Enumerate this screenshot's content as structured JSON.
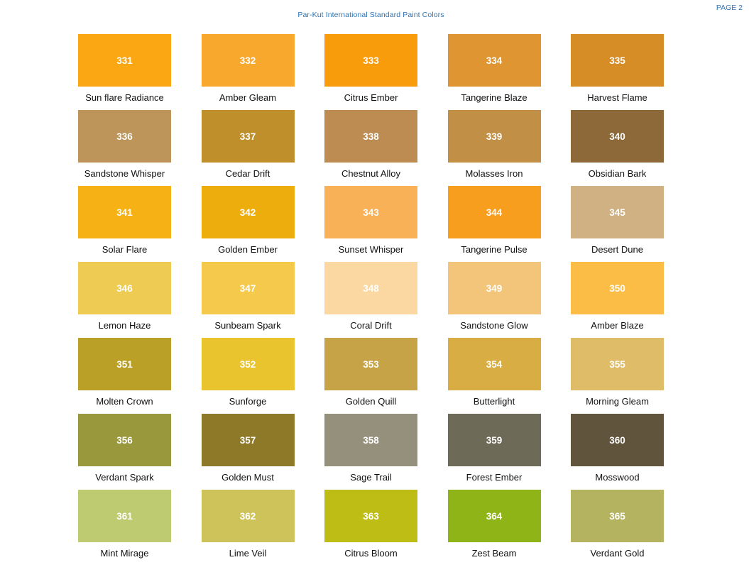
{
  "page": {
    "title": "Par-Kut International Standard Paint Colors",
    "page_label": "PAGE 2",
    "accent_color": "#2E74B5",
    "background_color": "#FFFFFF"
  },
  "grid": {
    "columns": 5,
    "rows": 7
  },
  "swatches": [
    {
      "code": "331",
      "name": "Sun flare Radiance",
      "color": "#FBA713"
    },
    {
      "code": "332",
      "name": "Amber Gleam",
      "color": "#F9A82E"
    },
    {
      "code": "333",
      "name": "Citrus Ember",
      "color": "#F89C0C"
    },
    {
      "code": "334",
      "name": "Tangerine Blaze",
      "color": "#DE9532"
    },
    {
      "code": "335",
      "name": "Harvest Flame",
      "color": "#D78D26"
    },
    {
      "code": "336",
      "name": "Sandstone Whisper",
      "color": "#BD9459"
    },
    {
      "code": "337",
      "name": "Cedar Drift",
      "color": "#BE8F2B"
    },
    {
      "code": "338",
      "name": "Chestnut Alloy",
      "color": "#BD8C52"
    },
    {
      "code": "339",
      "name": "Molasses Iron",
      "color": "#C28F47"
    },
    {
      "code": "340",
      "name": "Obsidian Bark",
      "color": "#8D693A"
    },
    {
      "code": "341",
      "name": "Solar Flare",
      "color": "#F6B115"
    },
    {
      "code": "342",
      "name": "Golden Ember",
      "color": "#EDAE0D"
    },
    {
      "code": "343",
      "name": "Sunset Whisper",
      "color": "#F8B156"
    },
    {
      "code": "344",
      "name": "Tangerine Pulse",
      "color": "#F89E1E"
    },
    {
      "code": "345",
      "name": "Desert Dune",
      "color": "#CFB184"
    },
    {
      "code": "346",
      "name": "Lemon Haze",
      "color": "#EECB52"
    },
    {
      "code": "347",
      "name": "Sunbeam Spark",
      "color": "#F5CA4C"
    },
    {
      "code": "348",
      "name": "Coral Drift",
      "color": "#FBD7A2"
    },
    {
      "code": "349",
      "name": "Sandstone Glow",
      "color": "#F2C57B"
    },
    {
      "code": "350",
      "name": "Amber Blaze",
      "color": "#FBBD45"
    },
    {
      "code": "351",
      "name": "Molten Crown",
      "color": "#BBA027"
    },
    {
      "code": "352",
      "name": "Sunforge",
      "color": "#EAC42E"
    },
    {
      "code": "353",
      "name": "Golden Quill",
      "color": "#C6A347"
    },
    {
      "code": "354",
      "name": "Butterlight",
      "color": "#D8AD43"
    },
    {
      "code": "355",
      "name": "Morning Gleam",
      "color": "#DFBC68"
    },
    {
      "code": "356",
      "name": "Verdant Spark",
      "color": "#99983D"
    },
    {
      "code": "357",
      "name": "Golden Must",
      "color": "#8E7929"
    },
    {
      "code": "358",
      "name": "Sage Trail",
      "color": "#95907B"
    },
    {
      "code": "359",
      "name": "Forest Ember",
      "color": "#6E6A58"
    },
    {
      "code": "360",
      "name": "Mosswood",
      "color": "#61543D"
    },
    {
      "code": "361",
      "name": "Mint Mirage",
      "color": "#BECB71"
    },
    {
      "code": "362",
      "name": "Lime Veil",
      "color": "#CEC35B"
    },
    {
      "code": "363",
      "name": "Citrus Bloom",
      "color": "#BDBD15"
    },
    {
      "code": "364",
      "name": "Zest Beam",
      "color": "#8FB418"
    },
    {
      "code": "365",
      "name": "Verdant Gold",
      "color": "#B4B460"
    }
  ]
}
